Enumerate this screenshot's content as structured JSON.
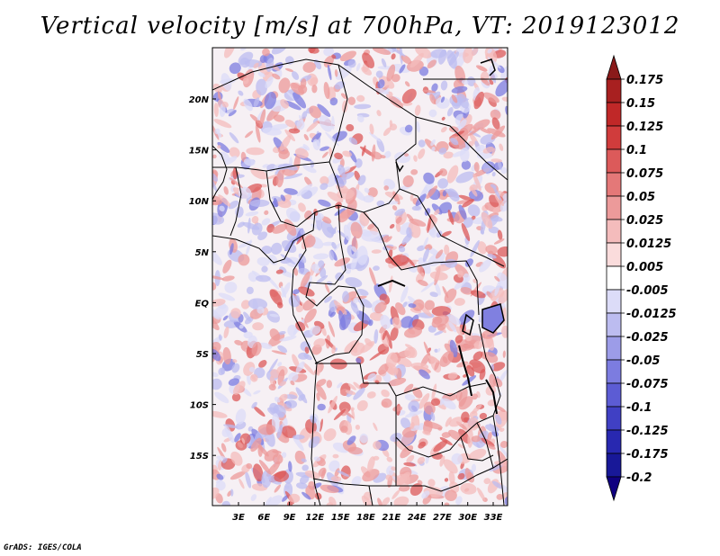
{
  "title": "Vertical velocity [m/s] at 700hPa, VT: 2019123012",
  "footer": "GrADS: IGES/COLA",
  "map": {
    "lon_labels": [
      "3E",
      "6E",
      "9E",
      "12E",
      "15E",
      "18E",
      "21E",
      "24E",
      "27E",
      "30E",
      "33E"
    ],
    "lat_labels": [
      "20N",
      "15N",
      "10N",
      "5N",
      "EQ",
      "5S",
      "10S",
      "15S"
    ]
  },
  "colorbar": {
    "labels": [
      "0.175",
      "0.15",
      "0.125",
      "0.1",
      "0.075",
      "0.05",
      "0.025",
      "0.0125",
      "0.005",
      "-0.005",
      "-0.0125",
      "-0.025",
      "-0.05",
      "-0.075",
      "-0.1",
      "-0.125",
      "-0.175",
      "-0.2"
    ],
    "colors": [
      "#8a1a1a",
      "#a82020",
      "#c02828",
      "#d03c3c",
      "#dc5a5a",
      "#e47878",
      "#ec9a9a",
      "#f4bcbc",
      "#fadcdc",
      "#ffffff",
      "#dcdcf8",
      "#bcbcf0",
      "#9c9ce8",
      "#7c7ce0",
      "#5c5cd4",
      "#4040c4",
      "#2828b0",
      "#181898",
      "#100080"
    ]
  }
}
